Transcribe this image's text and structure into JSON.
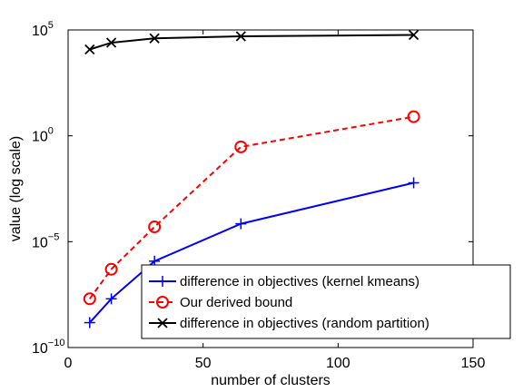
{
  "chart_data": {
    "type": "line",
    "xlabel": "number of clusters",
    "ylabel": "value (log scale)",
    "xlim": [
      0,
      150
    ],
    "ylim_log10": [
      -10,
      5
    ],
    "yscale": "log",
    "grid": false,
    "legend_placement": "lower-right",
    "x_ticks": [
      0,
      50,
      100,
      150
    ],
    "y_ticks": [
      {
        "exp": -10,
        "base": "10",
        "sup": "−10"
      },
      {
        "exp": -5,
        "base": "10",
        "sup": "−5"
      },
      {
        "exp": 0,
        "base": "10",
        "sup": "0"
      },
      {
        "exp": 5,
        "base": "10",
        "sup": "5"
      }
    ],
    "series": [
      {
        "name": "difference in objectives (kernel kmeans)",
        "color": "#0000ff",
        "dash": "solid",
        "marker": "plus",
        "x": [
          8,
          16,
          32,
          64,
          128
        ],
        "y": [
          1.5e-09,
          2e-08,
          1.2e-06,
          7e-05,
          0.006
        ]
      },
      {
        "name": "Our derived bound",
        "color": "#ff0000",
        "dash": "dashed",
        "marker": "circle",
        "x": [
          8,
          16,
          32,
          64,
          128
        ],
        "y": [
          2e-08,
          5e-07,
          5e-05,
          0.3,
          8.0
        ]
      },
      {
        "name": "difference in objectives (random partition)",
        "color": "#000000",
        "dash": "solid",
        "marker": "x",
        "x": [
          8,
          16,
          32,
          64,
          128
        ],
        "y": [
          12000.0,
          25000.0,
          40000.0,
          50000.0,
          58000.0
        ]
      }
    ]
  }
}
